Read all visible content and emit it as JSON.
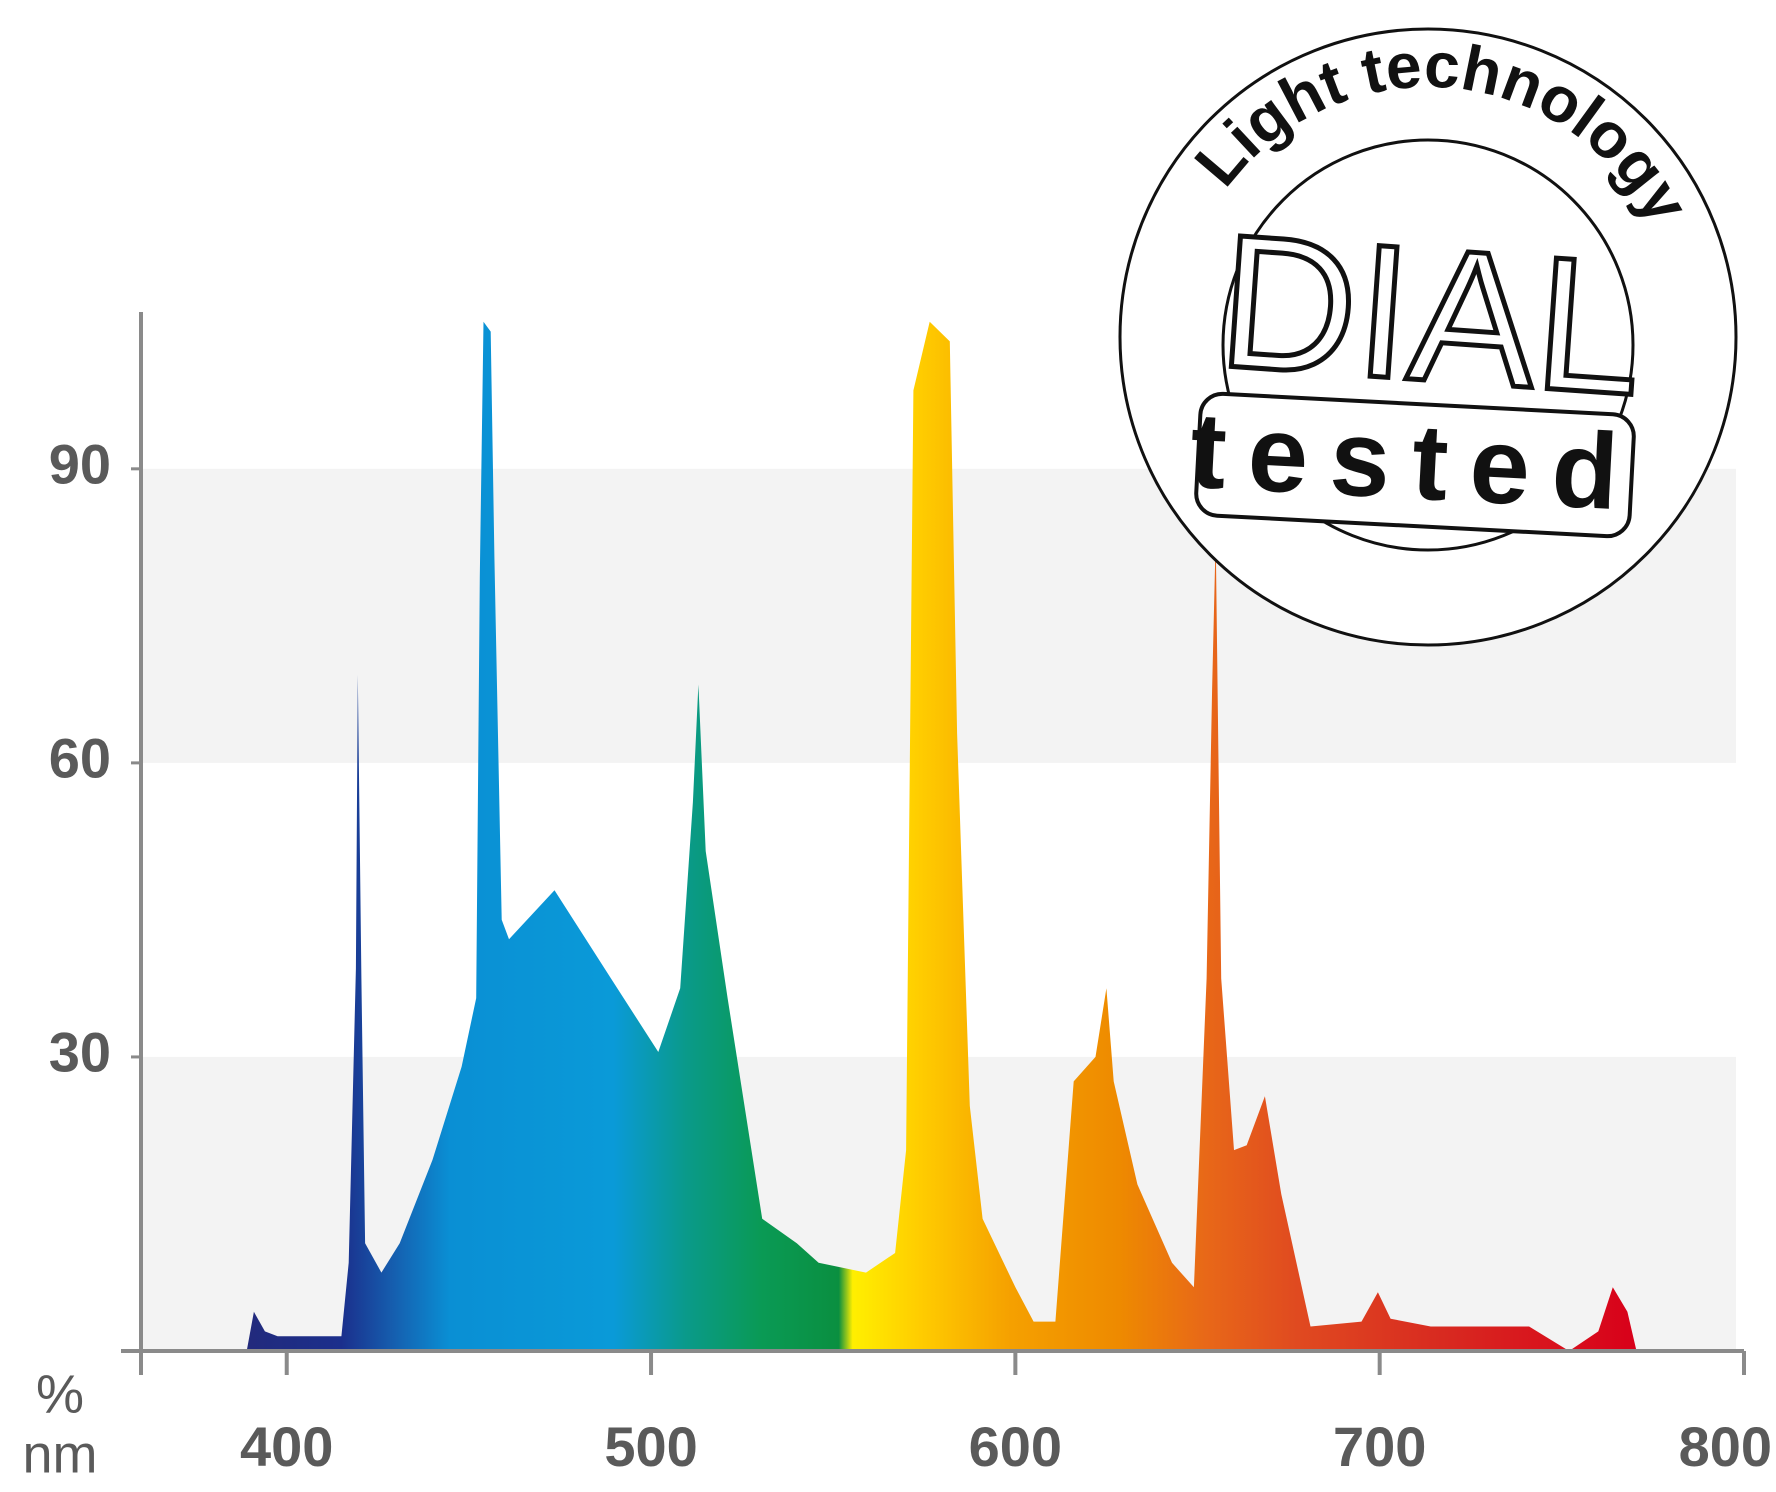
{
  "chart_data": {
    "type": "area",
    "x_unit": "nm",
    "y_unit": "%",
    "x": [
      389,
      391,
      394,
      397.5,
      415,
      417,
      419,
      419.5,
      420.5,
      421.5,
      426,
      431,
      440,
      448,
      452,
      453,
      454,
      456,
      457,
      459,
      461,
      473.5,
      489,
      502,
      508,
      511.5,
      513,
      515,
      521,
      530.5,
      540,
      546,
      559,
      567,
      570,
      572,
      576.5,
      582,
      584,
      587.5,
      591,
      600,
      605,
      611,
      616,
      622,
      625,
      627,
      633.5,
      643,
      649,
      652.5,
      654,
      655,
      656.5,
      660,
      663.5,
      668.5,
      673,
      681,
      695,
      699.5,
      703,
      714,
      741,
      752,
      760,
      764,
      768,
      770.5
    ],
    "values": [
      0,
      4,
      2,
      1.5,
      1.5,
      9,
      39,
      69,
      38,
      11,
      8,
      11,
      19.5,
      29,
      36,
      79,
      105,
      104,
      81,
      44,
      42,
      47,
      38,
      30.5,
      37,
      56,
      68,
      51,
      36,
      13.5,
      11,
      9,
      8,
      10,
      20.5,
      98,
      105,
      103,
      63,
      25,
      13.5,
      6.5,
      3,
      3,
      27.5,
      30,
      37,
      27.5,
      17,
      9,
      6.5,
      38,
      67.5,
      83,
      38,
      20.5,
      21,
      26,
      16,
      2.5,
      3,
      6,
      3.3,
      2.5,
      2.5,
      0,
      2,
      6.5,
      4,
      0
    ],
    "xlim": [
      360,
      800
    ],
    "xticks": [
      400,
      500,
      600,
      700,
      800
    ],
    "ylim": [
      0,
      106
    ],
    "yticks": [
      30,
      60,
      90
    ],
    "grid": "bands",
    "axis_color": "#8a8a8a",
    "band_color": "#f3f3f3"
  },
  "badge": {
    "arc_text": "Light technology",
    "brand": "DIAL",
    "tag": "tested"
  }
}
